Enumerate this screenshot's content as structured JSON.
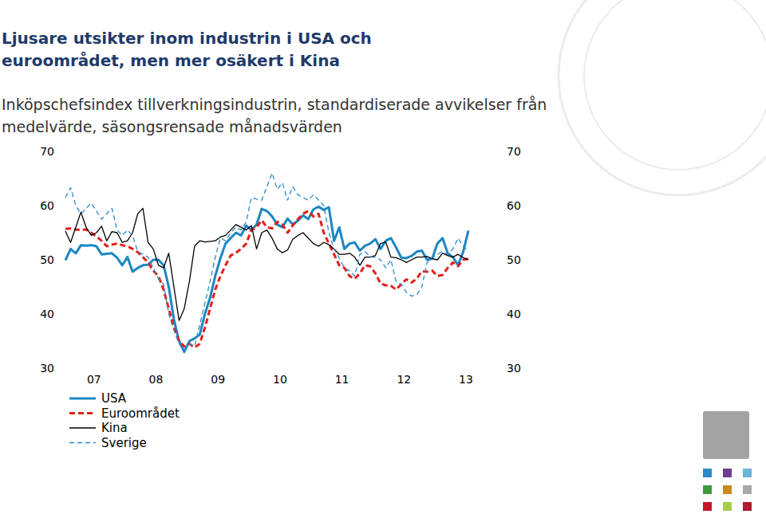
{
  "chart_data": {
    "type": "line",
    "title": "Ljusare utsikter inom industrin i USA och euroområdet, men mer osäkert i Kina",
    "subtitle": "Inköpschefsindex tillverkningsindustrin, standardiserade avvikelser från medelvärde, säsongsrensade månadsvärden",
    "categories": [
      null,
      null,
      null,
      null,
      null,
      null,
      "07",
      null,
      null,
      null,
      null,
      null,
      null,
      null,
      null,
      null,
      null,
      null,
      "08",
      null,
      null,
      null,
      null,
      null,
      null,
      null,
      null,
      null,
      null,
      null,
      "09",
      null,
      null,
      null,
      null,
      null,
      null,
      null,
      null,
      null,
      null,
      null,
      "10",
      null,
      null,
      null,
      null,
      null,
      null,
      null,
      null,
      null,
      null,
      null,
      "11",
      null,
      null,
      null,
      null,
      null,
      null,
      null,
      null,
      null,
      null,
      null,
      "12",
      null,
      null,
      null,
      null,
      null,
      null,
      null,
      null,
      null,
      null,
      null,
      "13"
    ],
    "series": [
      {
        "name": "USA",
        "color": "#1b87c3",
        "line_style": "solid",
        "values": [
          49.9,
          52,
          51.2,
          52.7,
          52.6,
          52.7,
          52.5,
          51,
          51.1,
          51.2,
          50.4,
          49,
          50.5,
          47.8,
          48.5,
          49,
          49.1,
          50,
          50,
          49,
          45,
          39,
          35,
          33,
          35,
          35.5,
          36.2,
          40,
          43,
          47,
          50.3,
          53,
          54,
          55,
          54.5,
          56.3,
          55.5,
          56.5,
          59.4,
          59,
          58,
          56.5,
          56,
          57.6,
          56.5,
          57.2,
          58.2,
          57.5,
          59.3,
          59.8,
          59.2,
          59.7,
          53.5,
          56,
          52,
          53,
          53.2,
          51.7,
          52.6,
          53,
          53.8,
          52,
          53.5,
          54,
          52.3,
          50.4,
          50.3,
          50.7,
          51.5,
          51.7,
          50,
          50.2,
          53,
          54,
          51.2,
          50.5,
          49,
          51.5,
          55.4
        ]
      },
      {
        "name": "Euroområdet",
        "color": "#e3201b",
        "line_style": "dashed",
        "values": [
          55.7,
          55.8,
          55.6,
          55.5,
          55.6,
          55,
          54.3,
          53.5,
          52.5,
          52.8,
          53,
          52.7,
          52.5,
          52,
          51.4,
          50.5,
          49.5,
          48,
          47,
          44.5,
          41,
          37.5,
          35,
          34,
          34.5,
          33.8,
          34.5,
          37.5,
          41,
          44.5,
          47,
          49,
          50.8,
          51.3,
          52,
          53,
          55.5,
          56,
          57.3,
          56,
          55.8,
          57,
          56.5,
          55,
          56.3,
          57.5,
          58.5,
          59,
          58,
          58.5,
          55,
          53,
          51,
          49,
          48.5,
          47,
          46.5,
          47.5,
          49,
          48.8,
          47.5,
          45.6,
          45.3,
          45.2,
          44.5,
          45.5,
          46.4,
          45.8,
          46.5,
          47.9,
          47.8,
          48,
          47,
          47.2,
          48.5,
          49.5,
          48.8,
          50,
          50.2
        ]
      },
      {
        "name": "Kina",
        "color": "#000000",
        "line_style": "solid",
        "values": [
          55.3,
          53.2,
          56,
          58.8,
          56,
          54.5,
          55,
          56.2,
          53.5,
          55.2,
          55,
          53.2,
          53.5,
          55,
          58.5,
          59.5,
          53.2,
          52,
          49,
          48.5,
          51.2,
          45,
          38.8,
          41,
          46,
          52.5,
          53.5,
          53.3,
          53.4,
          53.5,
          54.2,
          54.5,
          55.5,
          56.5,
          56,
          55.5,
          56.3,
          52,
          55,
          55.5,
          54,
          52,
          51.3,
          51.8,
          53.8,
          54.5,
          55,
          54,
          53,
          52.5,
          53.2,
          52.8,
          52,
          51,
          51,
          51.2,
          50.5,
          49,
          50.5,
          50.5,
          50.8,
          53,
          53.3,
          50.5,
          50.4,
          50,
          49.5,
          50,
          50.5,
          50.5,
          50.6,
          50.2,
          50,
          51.2,
          50.8,
          50.5,
          51,
          50.4,
          50
        ]
      },
      {
        "name": "Sverige",
        "color": "#2a88c8",
        "line_style": "dashed",
        "values": [
          61.5,
          63.3,
          60,
          58.5,
          59.5,
          60.5,
          59,
          57.5,
          58.5,
          59.5,
          55.5,
          54.5,
          55.5,
          54.5,
          51.5,
          51,
          50.5,
          48.5,
          46.5,
          45.5,
          40,
          37,
          34.5,
          33.3,
          34.5,
          34,
          38,
          42,
          46,
          50.5,
          54,
          53.5,
          55,
          56,
          55.5,
          57,
          61.5,
          61.2,
          61,
          63.5,
          66,
          63,
          64.2,
          61,
          63.5,
          62,
          61.5,
          61,
          62,
          61,
          60,
          55,
          52,
          50.3,
          48.5,
          48,
          47,
          51,
          51.5,
          50.5,
          50.5,
          50,
          48.5,
          50,
          46,
          45.5,
          44,
          43.3,
          43.5,
          45,
          49.5,
          50.5,
          51,
          51.5,
          51,
          52,
          54,
          52.5,
          51.5
        ]
      }
    ],
    "ylim": [
      30,
      70
    ],
    "yticks": [
      30,
      40,
      50,
      60,
      70
    ],
    "grid": false,
    "legend": "bottom"
  }
}
